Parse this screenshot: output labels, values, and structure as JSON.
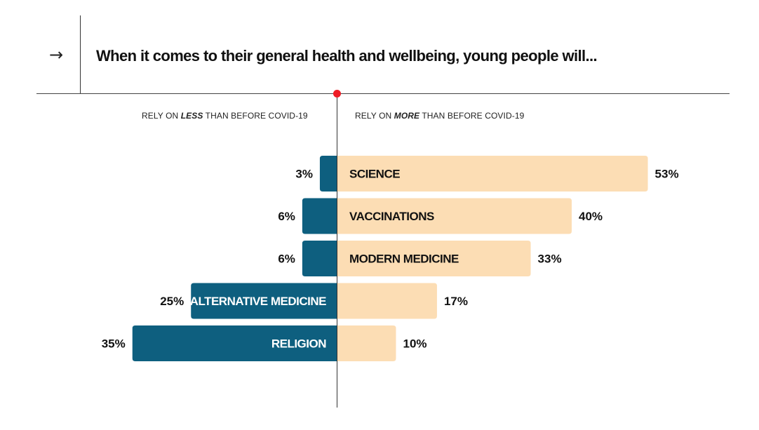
{
  "header": {
    "arrow_icon": "arrow-right-icon",
    "title": "When it comes to  their general health and wellbeing, young people will..."
  },
  "columns": {
    "left_prefix": "RELY ON ",
    "left_emph": "LESS",
    "left_suffix": " THAN BEFORE COVID-19",
    "right_prefix": "RELY ON ",
    "right_emph": "MORE",
    "right_suffix": " THAN BEFORE COVID-19"
  },
  "colors": {
    "less": "#0e5f7f",
    "more": "#fcddb4",
    "marker": "#ee1c25"
  },
  "chart_data": {
    "type": "bar",
    "orientation": "diverging-horizontal",
    "categories": [
      "SCIENCE",
      "VACCINATIONS",
      "MODERN MEDICINE",
      "ALTERNATIVE MEDICINE",
      "RELIGION"
    ],
    "series": [
      {
        "name": "RELY ON LESS THAN BEFORE COVID-19",
        "values": [
          3,
          6,
          6,
          25,
          35
        ],
        "labels": [
          "3%",
          "6%",
          "6%",
          "25%",
          "35%"
        ]
      },
      {
        "name": "RELY ON MORE THAN BEFORE COVID-19",
        "values": [
          53,
          40,
          33,
          17,
          10
        ],
        "labels": [
          "53%",
          "40%",
          "33%",
          "17%",
          "10%"
        ]
      }
    ],
    "category_label_side": [
      "more",
      "more",
      "more",
      "less",
      "less"
    ],
    "unit": "%"
  }
}
